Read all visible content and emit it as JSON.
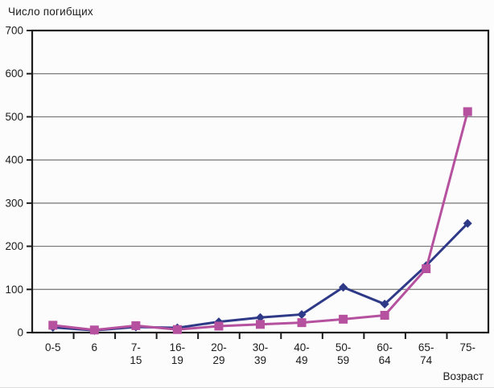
{
  "figure": {
    "title": "Число погибщих",
    "x_axis_label": "Возраст"
  },
  "chart_data": {
    "type": "line",
    "title": "Число погибщих",
    "xlabel": "Возраст",
    "ylabel": "",
    "categories": [
      "0-5",
      "6",
      "7-15",
      "16-19",
      "20-29",
      "30-39",
      "40-49",
      "50-59",
      "60-64",
      "65-74",
      "75-"
    ],
    "categories_display": [
      [
        "0-5"
      ],
      [
        "6"
      ],
      [
        "7-",
        "15"
      ],
      [
        "16-",
        "19"
      ],
      [
        "20-",
        "29"
      ],
      [
        "30-",
        "39"
      ],
      [
        "40-",
        "49"
      ],
      [
        "50-",
        "59"
      ],
      [
        "60-",
        "64"
      ],
      [
        "65-",
        "74"
      ],
      [
        "75-"
      ]
    ],
    "ylim": [
      0,
      700
    ],
    "yticks": [
      0,
      100,
      200,
      300,
      400,
      500,
      600,
      700
    ],
    "grid": true,
    "legend": "none",
    "series": [
      {
        "name": "dark-blue-diamond-series",
        "marker": "diamond",
        "color": "#2e3a87",
        "values": [
          12,
          5,
          13,
          11,
          25,
          35,
          42,
          105,
          66,
          155,
          253
        ]
      },
      {
        "name": "magenta-square-series",
        "marker": "square",
        "color": "#b5519e",
        "values": [
          17,
          6,
          16,
          7,
          15,
          19,
          23,
          31,
          40,
          148,
          512
        ]
      }
    ],
    "colors": {
      "grid": "#757575",
      "axis": "#1c1c1c",
      "text": "#1c1c1c",
      "background": "#fcfcfc"
    }
  }
}
